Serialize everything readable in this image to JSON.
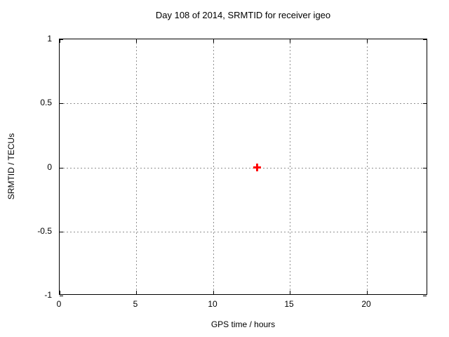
{
  "chart_data": {
    "type": "scatter",
    "title": "Day 108 of 2014, SRMTID for receiver igeo",
    "xlabel": "GPS time / hours",
    "ylabel": "SRMTID / TECUs",
    "xlim": [
      0,
      24
    ],
    "ylim": [
      -1,
      1
    ],
    "x_ticks": [
      0,
      5,
      10,
      15,
      20
    ],
    "x_tick_labels": [
      "0",
      "5",
      "10",
      "15",
      "20"
    ],
    "y_ticks": [
      -1,
      -0.5,
      0,
      0.5,
      1
    ],
    "y_tick_labels": [
      "-1",
      "-0.5",
      "0",
      "0.5",
      "1"
    ],
    "grid": true,
    "grid_style": "dotted",
    "legend": "none",
    "series": [
      {
        "name": "SRMTID",
        "marker": "plus",
        "color": "#ff0000",
        "points": [
          {
            "x": 12.85,
            "y": 0.0
          }
        ]
      }
    ],
    "colors": {
      "background": "#ffffff",
      "border": "#000000",
      "grid": "#909090",
      "text": "#000000"
    }
  }
}
